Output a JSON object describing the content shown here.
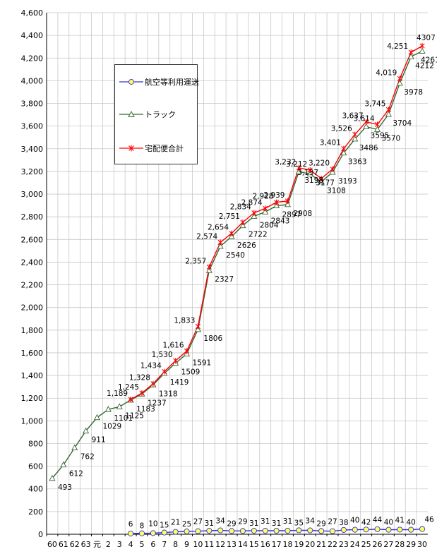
{
  "chart_data": {
    "type": "line",
    "title": "",
    "xlabel": "",
    "ylabel": "",
    "ylim": [
      0,
      4600
    ],
    "y_ticks": [
      0,
      200,
      400,
      600,
      800,
      1000,
      1200,
      1400,
      1600,
      1800,
      2000,
      2200,
      2400,
      2600,
      2800,
      3000,
      3200,
      3400,
      3600,
      3800,
      4000,
      4200,
      4400,
      4600
    ],
    "y_tick_labels": [
      "0",
      "200",
      "400",
      "600",
      "800",
      "1,000",
      "1,200",
      "1,400",
      "1,600",
      "1,800",
      "2,000",
      "2,200",
      "2,400",
      "2,600",
      "2,800",
      "3,000",
      "3,200",
      "3,400",
      "3,600",
      "3,800",
      "4,000",
      "4,200",
      "4,400",
      "4,600"
    ],
    "categories": [
      "60",
      "61",
      "62",
      "63",
      "元",
      "2",
      "3",
      "4",
      "5",
      "6",
      "7",
      "8",
      "9",
      "10",
      "11",
      "12",
      "13",
      "14",
      "15",
      "16",
      "17",
      "18",
      "19",
      "20",
      "21",
      "22",
      "23",
      "24",
      "25",
      "26",
      "27",
      "28",
      "29",
      "30"
    ],
    "grid": true,
    "legend_position": "top-left",
    "series": [
      {
        "name": "航空等利用運送",
        "color": "#3333cc",
        "marker_fill": "#ffff66",
        "marker": "circle",
        "values": [
          null,
          null,
          null,
          null,
          null,
          null,
          null,
          6,
          8,
          10,
          15,
          21,
          25,
          27,
          31,
          34,
          29,
          29,
          31,
          31,
          31,
          31,
          35,
          34,
          29,
          27,
          38,
          40,
          42,
          44,
          40,
          41,
          40,
          46
        ],
        "labels": [
          "",
          "",
          "",
          "",
          "",
          "",
          "",
          "6",
          "8",
          "10",
          "15",
          "21",
          "25",
          "27",
          "31",
          "34",
          "29",
          "29",
          "31",
          "31",
          "31",
          "31",
          "35",
          "34",
          "29",
          "27",
          "38",
          "40",
          "42",
          "44",
          "40",
          "41",
          "40",
          "46"
        ]
      },
      {
        "name": "トラック",
        "color": "#336633",
        "marker": "triangle",
        "values": [
          493,
          612,
          762,
          911,
          1029,
          1101,
          1125,
          1183,
          1237,
          1318,
          1419,
          1509,
          1591,
          1806,
          2327,
          2540,
          2626,
          2722,
          2804,
          2843,
          2897,
          2908,
          3198,
          3177,
          3108,
          3193,
          3363,
          3486,
          3595,
          3570,
          3704,
          3978,
          4212,
          4261
        ],
        "labels": [
          "493",
          "612",
          "762",
          "911",
          "1029",
          "1101",
          "1125",
          "1183",
          "1237",
          "1318",
          "1419",
          "1509",
          "1591",
          "1806",
          "2327",
          "2540",
          "2626",
          "2722",
          "2804",
          "2843",
          "2897",
          "2908",
          "3198",
          "3177",
          "3108",
          "3193",
          "3363",
          "3486",
          "3595",
          "3570",
          "3704",
          "3978",
          "4212",
          "4261"
        ]
      },
      {
        "name": "宅配便合計",
        "color": "#ff0000",
        "marker": "asterisk",
        "values": [
          null,
          null,
          null,
          null,
          null,
          null,
          null,
          1189,
          1245,
          1328,
          1434,
          1530,
          1616,
          1833,
          2357,
          2574,
          2654,
          2751,
          2834,
          2874,
          2928,
          2939,
          3232,
          3212,
          3137,
          3220,
          3401,
          3526,
          3637,
          3614,
          3745,
          4019,
          4251,
          4307
        ],
        "labels": [
          "",
          "",
          "",
          "",
          "",
          "",
          "",
          "1,189",
          "1,245",
          "1,328",
          "1,434",
          "1,530",
          "1,616",
          "1,833",
          "2,357",
          "2,574",
          "2,654",
          "2,751",
          "2,834",
          "2,874",
          "2,928",
          "2,939",
          "3,232",
          "3,212",
          "3,137",
          "3,220",
          "3,401",
          "3,526",
          "3,637",
          "3,614",
          "3,745",
          "4,019",
          "4,251",
          "4307"
        ]
      }
    ]
  }
}
